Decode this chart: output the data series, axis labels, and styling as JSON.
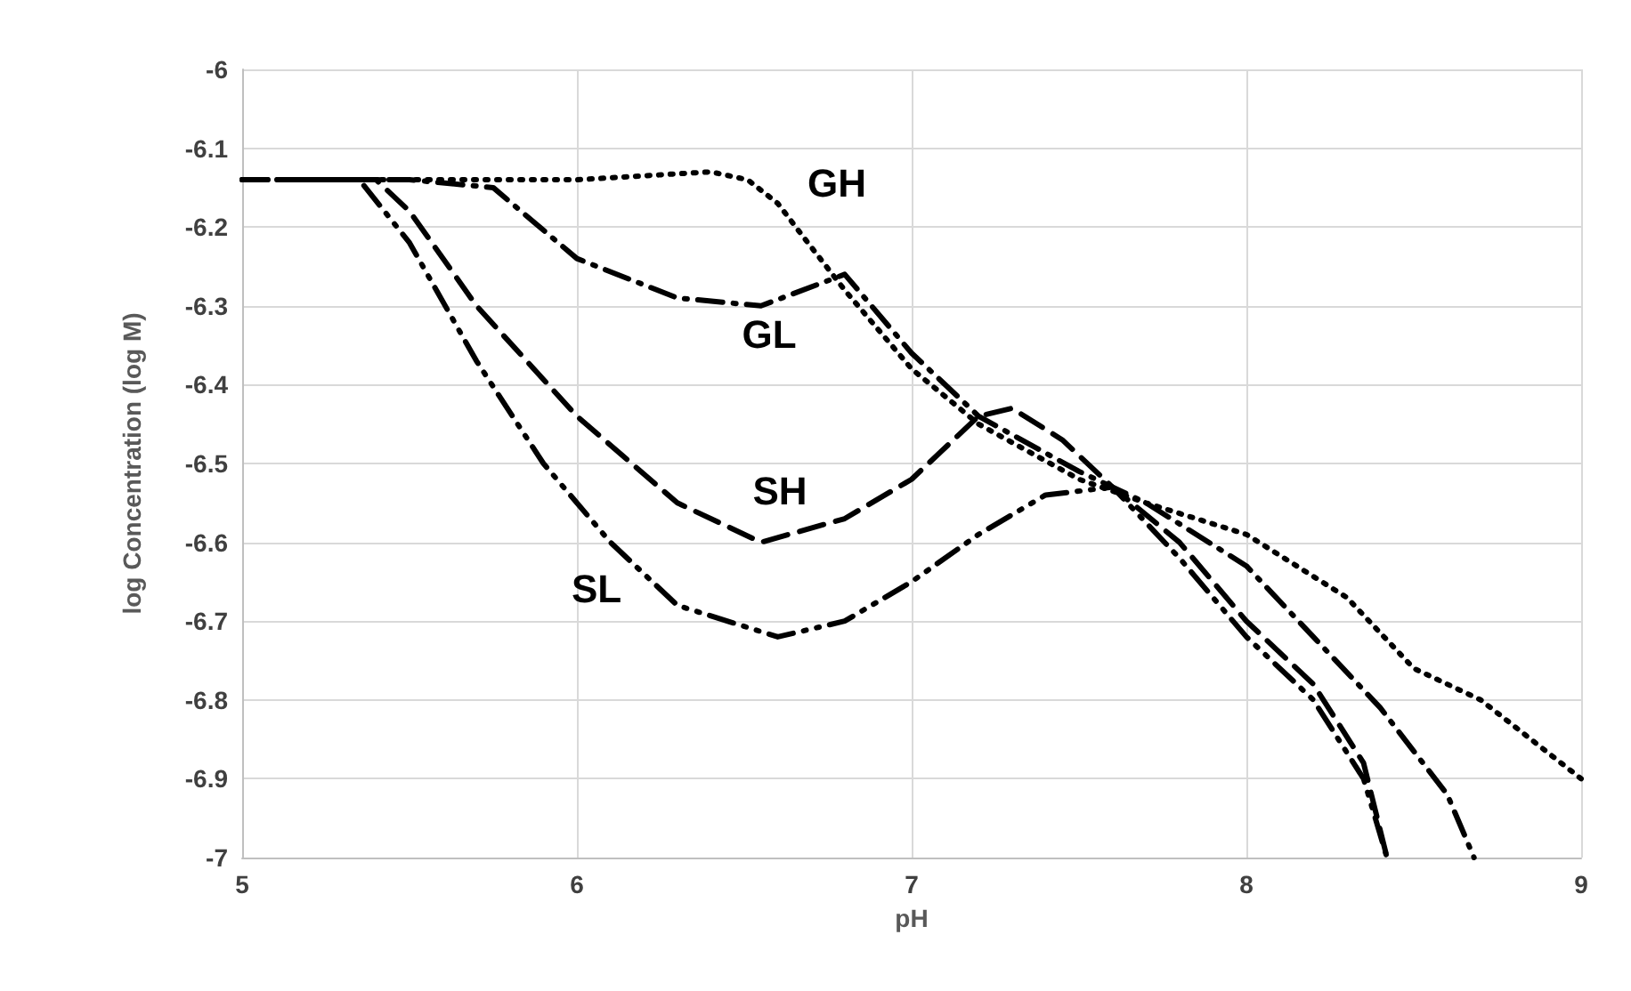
{
  "chart_data": {
    "type": "line",
    "xlabel": "pH",
    "ylabel": "log Concentration (log M)",
    "xlim": [
      5,
      9
    ],
    "xticks": [
      5,
      6,
      7,
      8,
      9
    ],
    "ylim": [
      -7,
      -6
    ],
    "yticks": [
      -7,
      -6.9,
      -6.8,
      -6.7,
      -6.6,
      -6.5,
      -6.4,
      -6.3,
      -6.2,
      -6.1,
      -6
    ],
    "grid": true,
    "marker": "none",
    "series": [
      {
        "color": "#000000",
        "line_style": "dotted",
        "x": [
          5,
          5.5,
          6,
          6.4,
          6.51,
          6.6,
          6.69,
          6.8,
          7,
          7.2,
          7.5,
          7.7,
          8,
          8.3,
          8.5,
          8.7,
          9
        ],
        "values": [
          -6.14,
          -6.14,
          -6.14,
          -6.13,
          -6.14,
          -6.17,
          -6.22,
          -6.28,
          -6.38,
          -6.45,
          -6.52,
          -6.55,
          -6.59,
          -6.67,
          -6.76,
          -6.8,
          -6.9
        ]
      },
      {
        "color": "#000000",
        "line_style": "dashdot",
        "x": [
          5,
          5.5,
          5.75,
          6,
          6.3,
          6.55,
          6.8,
          7,
          7.2,
          7.5,
          7.7,
          8,
          8.2,
          8.4,
          8.6,
          8.68
        ],
        "values": [
          -6.14,
          -6.14,
          -6.15,
          -6.24,
          -6.29,
          -6.3,
          -6.26,
          -6.36,
          -6.44,
          -6.51,
          -6.55,
          -6.63,
          -6.72,
          -6.81,
          -6.92,
          -7
        ]
      },
      {
        "color": "#000000",
        "line_style": "dashed",
        "x": [
          5,
          5.4,
          5.5,
          5.7,
          6,
          6.3,
          6.55,
          6.8,
          7,
          7.2,
          7.3,
          7.45,
          7.6,
          7.8,
          8,
          8.2,
          8.35,
          8.42
        ],
        "values": [
          -6.14,
          -6.14,
          -6.18,
          -6.3,
          -6.44,
          -6.55,
          -6.6,
          -6.57,
          -6.52,
          -6.44,
          -6.43,
          -6.47,
          -6.53,
          -6.6,
          -6.7,
          -6.78,
          -6.88,
          -7
        ]
      },
      {
        "color": "#000000",
        "line_style": "dashdotdot",
        "x": [
          5,
          5.35,
          5.5,
          5.7,
          5.9,
          6.1,
          6.3,
          6.6,
          6.8,
          7,
          7.2,
          7.4,
          7.6,
          7.8,
          8,
          8.2,
          8.35,
          8.42
        ],
        "values": [
          -6.14,
          -6.14,
          -6.22,
          -6.37,
          -6.5,
          -6.6,
          -6.68,
          -6.72,
          -6.7,
          -6.65,
          -6.59,
          -6.54,
          -6.53,
          -6.62,
          -6.72,
          -6.8,
          -6.9,
          -7
        ]
      }
    ],
    "annotations": [
      "GH",
      "GL",
      "SH",
      "SL"
    ]
  }
}
